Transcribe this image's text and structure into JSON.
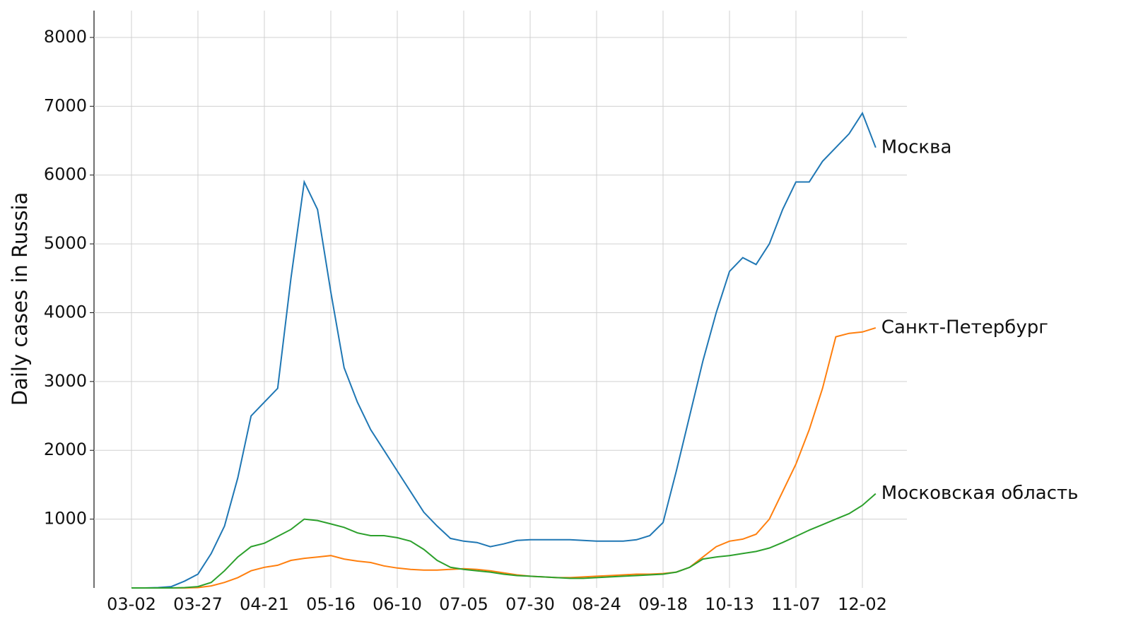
{
  "chart_data": {
    "type": "line",
    "ylabel": "Daily cases in Russia",
    "x": [
      "03-02",
      "03-07",
      "03-12",
      "03-17",
      "03-22",
      "03-27",
      "04-01",
      "04-06",
      "04-11",
      "04-16",
      "04-21",
      "04-26",
      "05-01",
      "05-06",
      "05-11",
      "05-16",
      "05-21",
      "05-26",
      "05-31",
      "06-05",
      "06-10",
      "06-15",
      "06-20",
      "06-25",
      "06-30",
      "07-05",
      "07-10",
      "07-15",
      "07-20",
      "07-25",
      "07-30",
      "08-04",
      "08-09",
      "08-14",
      "08-19",
      "08-24",
      "08-29",
      "09-03",
      "09-08",
      "09-13",
      "09-18",
      "09-23",
      "09-28",
      "10-03",
      "10-08",
      "10-13",
      "10-18",
      "10-23",
      "10-28",
      "11-02",
      "11-07",
      "11-12",
      "11-17",
      "11-22",
      "11-27",
      "12-02",
      "12-07"
    ],
    "xticks": [
      "03-02",
      "03-27",
      "04-21",
      "05-16",
      "06-10",
      "07-05",
      "07-30",
      "08-24",
      "09-18",
      "10-13",
      "11-07",
      "12-02"
    ],
    "ylim": [
      0,
      8390
    ],
    "yticks": [
      1000,
      2000,
      3000,
      4000,
      5000,
      6000,
      7000,
      8000
    ],
    "grid": true,
    "series": [
      {
        "name": "Москва",
        "color": "#1f77b4",
        "label_color": "#3a87bd",
        "values": [
          0,
          0,
          5,
          20,
          100,
          200,
          500,
          900,
          1600,
          2500,
          2700,
          2900,
          4500,
          5900,
          5500,
          4300,
          3200,
          2700,
          2300,
          2000,
          1700,
          1400,
          1100,
          900,
          720,
          680,
          660,
          600,
          640,
          690,
          700,
          700,
          700,
          700,
          690,
          680,
          680,
          680,
          700,
          760,
          950,
          1700,
          2500,
          3300,
          4000,
          4600,
          4800,
          4700,
          5000,
          5500,
          5900,
          5900,
          6200,
          6400,
          6600,
          6900,
          6400
        ]
      },
      {
        "name": "Санкт-Петербург",
        "color": "#ff7f0e",
        "label_color": "#f5913a",
        "values": [
          0,
          0,
          0,
          0,
          0,
          5,
          30,
          80,
          150,
          250,
          300,
          330,
          400,
          430,
          450,
          470,
          420,
          390,
          370,
          320,
          290,
          270,
          260,
          260,
          270,
          280,
          270,
          250,
          220,
          190,
          170,
          160,
          150,
          150,
          160,
          170,
          180,
          190,
          200,
          200,
          210,
          230,
          300,
          450,
          600,
          680,
          710,
          780,
          1000,
          1400,
          1800,
          2300,
          2900,
          3650,
          3700,
          3720,
          3780
        ]
      },
      {
        "name": "Московская область",
        "color": "#2ca02c",
        "label_color": "#4cae4c",
        "values": [
          0,
          0,
          0,
          0,
          5,
          20,
          80,
          250,
          450,
          600,
          650,
          750,
          850,
          1000,
          980,
          930,
          880,
          800,
          760,
          760,
          730,
          680,
          560,
          400,
          300,
          270,
          250,
          230,
          200,
          180,
          170,
          160,
          150,
          140,
          140,
          150,
          160,
          170,
          180,
          190,
          200,
          230,
          300,
          420,
          450,
          470,
          500,
          530,
          580,
          660,
          750,
          840,
          920,
          1000,
          1080,
          1200,
          1370
        ]
      }
    ]
  }
}
